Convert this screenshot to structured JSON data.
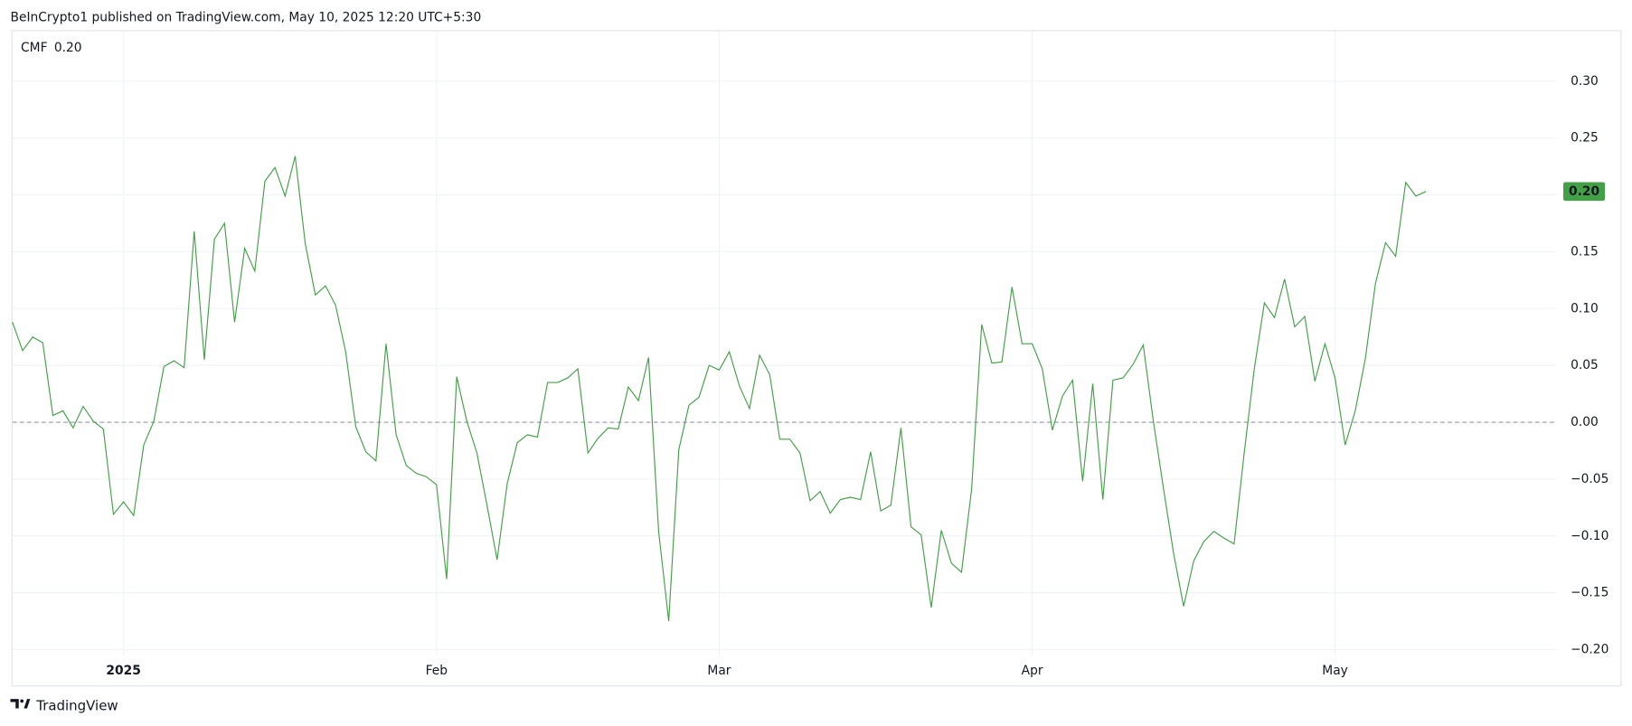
{
  "header": "BeInCrypto1 published on TradingView.com, May 10, 2025 12:20 UTC+5:30",
  "footer_brand": "TradingView",
  "chart_data": {
    "type": "line",
    "categories": [
      null,
      null,
      null,
      null,
      null,
      null,
      null,
      null,
      null,
      null,
      null,
      "2025",
      null,
      null,
      null,
      null,
      null,
      null,
      null,
      null,
      null,
      null,
      null,
      null,
      null,
      null,
      null,
      null,
      null,
      null,
      null,
      null,
      null,
      null,
      null,
      null,
      null,
      null,
      null,
      null,
      null,
      null,
      "Feb",
      null,
      null,
      null,
      null,
      null,
      null,
      null,
      null,
      null,
      null,
      null,
      null,
      null,
      null,
      null,
      null,
      null,
      null,
      null,
      null,
      null,
      null,
      null,
      null,
      null,
      null,
      null,
      "Mar",
      null,
      null,
      null,
      null,
      null,
      null,
      null,
      null,
      null,
      null,
      null,
      null,
      null,
      null,
      null,
      null,
      null,
      null,
      null,
      null,
      null,
      null,
      null,
      null,
      null,
      null,
      null,
      null,
      null,
      null,
      "Apr",
      null,
      null,
      null,
      null,
      null,
      null,
      null,
      null,
      null,
      null,
      null,
      null,
      null,
      null,
      null,
      null,
      null,
      null,
      null,
      null,
      null,
      null,
      null,
      null,
      null,
      null,
      null,
      null,
      null,
      "May",
      null,
      null,
      null,
      null,
      null,
      null,
      null,
      null,
      null
    ],
    "series": [
      {
        "name": "CMF",
        "color": "#43a047",
        "values": [
          0.088,
          0.063,
          0.075,
          0.07,
          0.006,
          0.01,
          -0.005,
          0.014,
          0.001,
          -0.006,
          -0.081,
          -0.07,
          -0.082,
          -0.02,
          0.001,
          0.049,
          0.054,
          0.048,
          0.168,
          0.055,
          0.161,
          0.175,
          0.088,
          0.153,
          0.133,
          0.212,
          0.224,
          0.199,
          0.234,
          0.157,
          0.112,
          0.12,
          0.103,
          0.062,
          -0.004,
          -0.026,
          -0.034,
          0.069,
          -0.011,
          -0.038,
          -0.045,
          -0.048,
          -0.055,
          -0.138,
          0.04,
          0.001,
          -0.027,
          -0.073,
          -0.121,
          -0.054,
          -0.018,
          -0.011,
          -0.013,
          0.035,
          0.035,
          0.039,
          0.047,
          -0.027,
          -0.014,
          -0.005,
          -0.006,
          0.031,
          0.019,
          0.057,
          -0.096,
          -0.175,
          -0.024,
          0.015,
          0.022,
          0.05,
          0.046,
          0.062,
          0.032,
          0.012,
          0.059,
          0.042,
          -0.015,
          -0.015,
          -0.027,
          -0.069,
          -0.061,
          -0.08,
          -0.068,
          -0.066,
          -0.068,
          -0.026,
          -0.078,
          -0.073,
          -0.005,
          -0.092,
          -0.099,
          -0.163,
          -0.095,
          -0.124,
          -0.132,
          -0.059,
          0.086,
          0.052,
          0.053,
          0.119,
          0.069,
          0.069,
          0.047,
          -0.007,
          0.023,
          0.037,
          -0.052,
          0.034,
          -0.068,
          0.037,
          0.039,
          0.051,
          0.068,
          0.001,
          -0.058,
          -0.115,
          -0.162,
          -0.122,
          -0.105,
          -0.096,
          -0.102,
          -0.107,
          -0.027,
          0.047,
          0.105,
          0.092,
          0.126,
          0.084,
          0.093,
          0.036,
          0.069,
          0.039,
          -0.02,
          0.01,
          0.056,
          0.122,
          0.158,
          0.146,
          0.211,
          0.199,
          0.203
        ]
      }
    ],
    "last_label": "0.20",
    "ylim": [
      -0.205,
      0.344
    ],
    "yticks": [
      {
        "value": -0.2,
        "label": "−0.20"
      },
      {
        "value": -0.15,
        "label": "−0.15"
      },
      {
        "value": -0.1,
        "label": "−0.10"
      },
      {
        "value": -0.05,
        "label": "−0.05"
      },
      {
        "value": 0,
        "label": "0.00"
      },
      {
        "value": 0.05,
        "label": "0.05"
      },
      {
        "value": 0.1,
        "label": "0.10"
      },
      {
        "value": 0.15,
        "label": "0.15"
      },
      {
        "value": 0.2,
        "label": "0.20"
      },
      {
        "value": 0.25,
        "label": "0.25"
      },
      {
        "value": 0.3,
        "label": "0.30"
      }
    ],
    "zero_line": 0,
    "grid": true
  }
}
